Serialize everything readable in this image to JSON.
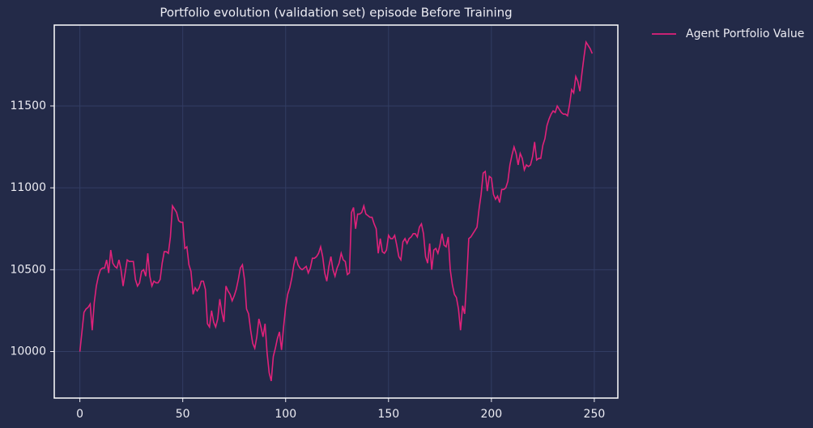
{
  "chart_data": {
    "type": "line",
    "title": "Portfolio evolution (validation set) episode Before Training",
    "x": [
      0,
      1,
      2,
      3,
      4,
      5,
      6,
      7,
      8,
      9,
      10,
      11,
      12,
      13,
      14,
      15,
      16,
      17,
      18,
      19,
      20,
      21,
      22,
      23,
      24,
      25,
      26,
      27,
      28,
      29,
      30,
      31,
      32,
      33,
      34,
      35,
      36,
      37,
      38,
      39,
      40,
      41,
      42,
      43,
      44,
      45,
      46,
      47,
      48,
      49,
      50,
      51,
      52,
      53,
      54,
      55,
      56,
      57,
      58,
      59,
      60,
      61,
      62,
      63,
      64,
      65,
      66,
      67,
      68,
      69,
      70,
      71,
      72,
      73,
      74,
      75,
      76,
      77,
      78,
      79,
      80,
      81,
      82,
      83,
      84,
      85,
      86,
      87,
      88,
      89,
      90,
      91,
      92,
      93,
      94,
      95,
      96,
      97,
      98,
      99,
      100,
      101,
      102,
      103,
      104,
      105,
      106,
      107,
      108,
      109,
      110,
      111,
      112,
      113,
      114,
      115,
      116,
      117,
      118,
      119,
      120,
      121,
      122,
      123,
      124,
      125,
      126,
      127,
      128,
      129,
      130,
      131,
      132,
      133,
      134,
      135,
      136,
      137,
      138,
      139,
      140,
      141,
      142,
      143,
      144,
      145,
      146,
      147,
      148,
      149,
      150,
      151,
      152,
      153,
      154,
      155,
      156,
      157,
      158,
      159,
      160,
      161,
      162,
      163,
      164,
      165,
      166,
      167,
      168,
      169,
      170,
      171,
      172,
      173,
      174,
      175,
      176,
      177,
      178,
      179,
      180,
      181,
      182,
      183,
      184,
      185,
      186,
      187,
      188,
      189,
      190,
      191,
      192,
      193,
      194,
      195,
      196,
      197,
      198,
      199,
      200,
      201,
      202,
      203,
      204,
      205,
      206,
      207,
      208,
      209,
      210,
      211,
      212,
      213,
      214,
      215,
      216,
      217,
      218,
      219,
      220,
      221,
      222,
      223,
      224,
      225,
      226,
      227,
      228,
      229,
      230,
      231,
      232,
      233,
      234,
      235,
      236,
      237,
      238,
      239,
      240,
      241,
      242,
      243,
      244,
      245,
      246,
      247,
      248,
      249
    ],
    "series": [
      {
        "name": "Agent Portfolio Value",
        "color": "#e0227a",
        "values": [
          10000,
          10120,
          10240,
          10260,
          10270,
          10290,
          10130,
          10300,
          10400,
          10460,
          10500,
          10510,
          10510,
          10560,
          10480,
          10620,
          10540,
          10520,
          10510,
          10560,
          10500,
          10400,
          10480,
          10560,
          10550,
          10550,
          10550,
          10440,
          10400,
          10420,
          10490,
          10500,
          10460,
          10600,
          10460,
          10400,
          10430,
          10420,
          10420,
          10440,
          10540,
          10610,
          10610,
          10600,
          10700,
          10890,
          10870,
          10850,
          10800,
          10790,
          10790,
          10630,
          10640,
          10530,
          10490,
          10350,
          10390,
          10370,
          10390,
          10430,
          10430,
          10380,
          10170,
          10150,
          10250,
          10180,
          10150,
          10200,
          10320,
          10240,
          10180,
          10400,
          10370,
          10350,
          10310,
          10340,
          10380,
          10440,
          10510,
          10530,
          10440,
          10260,
          10230,
          10130,
          10050,
          10020,
          10090,
          10200,
          10150,
          10090,
          10170,
          9990,
          9870,
          9820,
          9970,
          10020,
          10080,
          10120,
          10010,
          10150,
          10270,
          10350,
          10390,
          10450,
          10530,
          10580,
          10530,
          10510,
          10500,
          10510,
          10520,
          10480,
          10510,
          10570,
          10570,
          10580,
          10600,
          10640,
          10580,
          10480,
          10430,
          10520,
          10580,
          10500,
          10460,
          10510,
          10540,
          10600,
          10560,
          10550,
          10470,
          10480,
          10850,
          10880,
          10750,
          10840,
          10840,
          10850,
          10890,
          10840,
          10830,
          10820,
          10820,
          10780,
          10750,
          10600,
          10690,
          10610,
          10600,
          10620,
          10710,
          10690,
          10690,
          10710,
          10650,
          10580,
          10560,
          10670,
          10690,
          10660,
          10690,
          10700,
          10720,
          10720,
          10700,
          10760,
          10780,
          10720,
          10580,
          10540,
          10660,
          10500,
          10620,
          10630,
          10600,
          10650,
          10720,
          10650,
          10640,
          10700,
          10500,
          10410,
          10350,
          10330,
          10260,
          10130,
          10280,
          10230,
          10440,
          10690,
          10700,
          10720,
          10740,
          10760,
          10870,
          10960,
          11090,
          11100,
          10980,
          11070,
          11060,
          10960,
          10930,
          10950,
          10910,
          10990,
          10990,
          11000,
          11040,
          11140,
          11200,
          11250,
          11210,
          11140,
          11210,
          11180,
          11110,
          11140,
          11130,
          11140,
          11190,
          11280,
          11170,
          11180,
          11180,
          11260,
          11300,
          11380,
          11420,
          11450,
          11470,
          11460,
          11500,
          11480,
          11460,
          11450,
          11450,
          11440,
          11510,
          11600,
          11580,
          11680,
          11650,
          11590,
          11700,
          11800,
          11890,
          11870,
          11850,
          11820
        ]
      }
    ],
    "xlim": [
      -12.45,
      261.45
    ],
    "xticks": [
      0,
      50,
      100,
      150,
      200,
      250
    ],
    "ylim": [
      9716,
      11994
    ],
    "yticks": [
      10000,
      10500,
      11000,
      11500
    ],
    "grid": true,
    "legend": "outside-upper-right"
  }
}
